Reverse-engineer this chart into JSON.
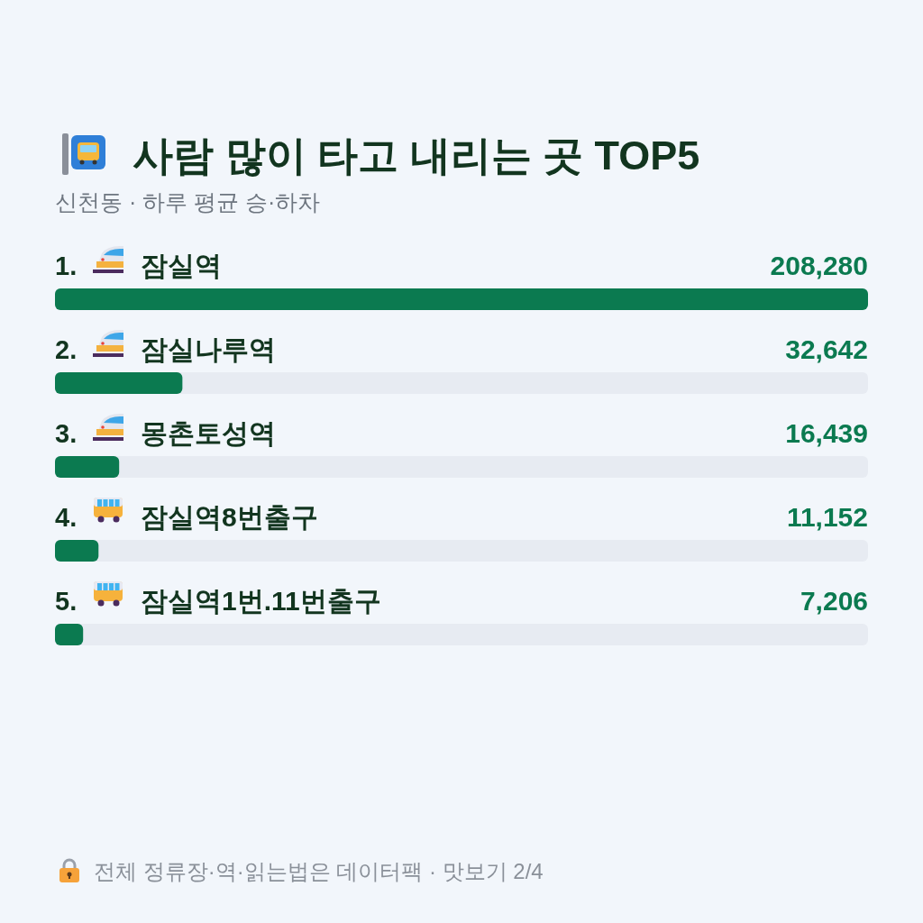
{
  "chart_data": {
    "type": "bar",
    "orientation": "horizontal",
    "title": "사람 많이 타고 내리는 곳 TOP5",
    "subtitle": "신천동 · 하루 평균 승·하차",
    "categories": [
      "1. 잠실역",
      "2. 잠실나루역",
      "3. 몽촌토성역",
      "4. 잠실역8번출구",
      "5. 잠실역1번.11번출구"
    ],
    "values": [
      208280,
      32642,
      16439,
      11152,
      7206
    ],
    "value_labels": [
      "208,280",
      "32,642",
      "16,439",
      "11,152",
      "7,206"
    ],
    "color": "#0b7a50",
    "annotations": [
      "전체 정류장·역·읽는법은 데이터팩 · 맛보기 2/4"
    ]
  }
}
